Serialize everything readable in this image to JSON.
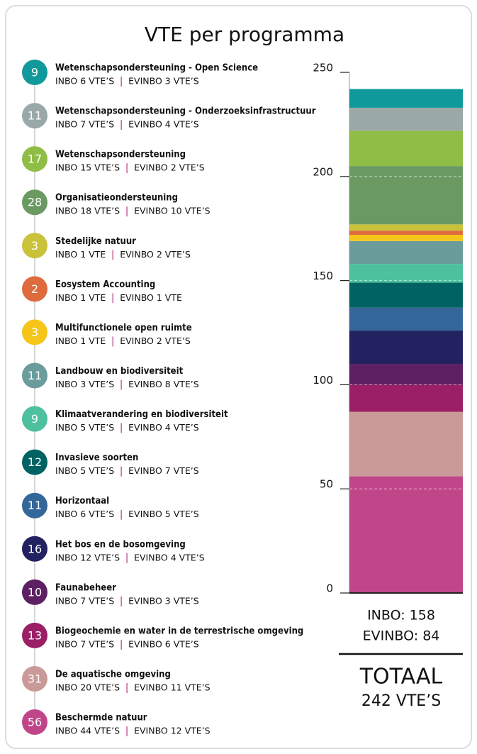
{
  "chart_data": {
    "type": "stacked-bar",
    "title": "VTE per programma",
    "programs": [
      {
        "name": "Wetenschapsondersteuning - Open Science",
        "value": 9,
        "inbo": "INBO 6 VTE’S",
        "evinbo": "EVINBO 3 VTE’S",
        "color": "#10999a"
      },
      {
        "name": "Wetenschapsondersteuning - Onderzoeksinfrastructuur",
        "value": 11,
        "inbo": "INBO 7 VTE’S",
        "evinbo": "EVINBO 4 VTE’S",
        "color": "#9aa8a8"
      },
      {
        "name": "Wetenschapsondersteuning",
        "value": 17,
        "inbo": "INBO 15 VTE’S",
        "evinbo": "EVINBO 2 VTE’S",
        "color": "#8fbd45"
      },
      {
        "name": "Organisatieondersteuning",
        "value": 28,
        "inbo": "INBO 18 VTE’S",
        "evinbo": "EVINBO 10 VTE’S",
        "color": "#6a9a62"
      },
      {
        "name": "Stedelijke natuur",
        "value": 3,
        "inbo": "INBO 1 VTE",
        "evinbo": "EVINBO 2 VTE’S",
        "color": "#cbc23c"
      },
      {
        "name": "Eosystem Accounting",
        "value": 2,
        "inbo": "INBO 1 VTE",
        "evinbo": "EVINBO 1 VTE",
        "color": "#df6a3d"
      },
      {
        "name": "Multifunctionele open ruimte",
        "value": 3,
        "inbo": "INBO 1 VTE",
        "evinbo": "EVINBO 2 VTE’S",
        "color": "#f6c51a"
      },
      {
        "name": "Landbouw en biodiversiteit",
        "value": 11,
        "inbo": "INBO 3 VTE’S",
        "evinbo": "EVINBO 8 VTE’S",
        "color": "#6b9c9c"
      },
      {
        "name": "Klimaatverandering en biodiversiteit",
        "value": 9,
        "inbo": "INBO 5 VTE’S",
        "evinbo": "EVINBO 4 VTE’S",
        "color": "#4dc09d"
      },
      {
        "name": "Invasieve soorten",
        "value": 12,
        "inbo": "INBO 5 VTE’S",
        "evinbo": "EVINBO 7 VTE’S",
        "color": "#006262"
      },
      {
        "name": "Horizontaal",
        "value": 11,
        "inbo": "INBO 6 VTE’S",
        "evinbo": "EVINBO 5 VTE’S",
        "color": "#33679a"
      },
      {
        "name": "Het bos en de bosomgeving",
        "value": 16,
        "inbo": "INBO 12 VTE’S",
        "evinbo": "EVINBO 4 VTE’S",
        "color": "#222260"
      },
      {
        "name": "Faunabeheer",
        "value": 10,
        "inbo": "INBO 7 VTE’S",
        "evinbo": "EVINBO 3 VTE’S",
        "color": "#5d2062"
      },
      {
        "name": "Biogeochemie en water in de terrestrische omgeving",
        "value": 13,
        "inbo": "INBO 7 VTE’S",
        "evinbo": "EVINBO 6 VTE’S",
        "color": "#9b1f66"
      },
      {
        "name": "De aquatische omgeving",
        "value": 31,
        "inbo": "INBO 20 VTE’S",
        "evinbo": "EVINBO 11 VTE’S",
        "color": "#c99a98"
      },
      {
        "name": "Beschermde natuur",
        "value": 56,
        "inbo": "INBO 44 VTE’S",
        "evinbo": "EVINBO 12 VTE’S",
        "color": "#c0468a"
      }
    ],
    "ylim": [
      0,
      250
    ],
    "yticks": [
      0,
      50,
      100,
      150,
      200,
      250
    ],
    "grid": true,
    "summary": {
      "inbo": "INBO: 158",
      "evinbo": "EVINBO: 84",
      "total_label": "TOTAAL",
      "total": "242 VTE’S"
    }
  }
}
